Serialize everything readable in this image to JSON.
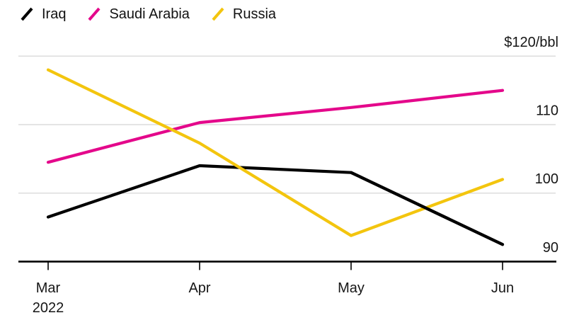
{
  "legend": {
    "items": [
      {
        "label": "Iraq",
        "color": "#000000"
      },
      {
        "label": "Saudi Arabia",
        "color": "#e4088b"
      },
      {
        "label": "Russia",
        "color": "#f3c50e"
      }
    ]
  },
  "chart_data": {
    "type": "line",
    "title": "",
    "unit": "$/bbl",
    "categories": [
      "Mar",
      "Apr",
      "May",
      "Jun"
    ],
    "x_year_label": "2022",
    "series": [
      {
        "name": "Iraq",
        "color": "#000000",
        "values": [
          96.5,
          104,
          103,
          92.5
        ]
      },
      {
        "name": "Saudi Arabia",
        "color": "#e4088b",
        "values": [
          104.5,
          110.3,
          112.5,
          115
        ]
      },
      {
        "name": "Russia",
        "color": "#f3c50e",
        "values": [
          118,
          107.3,
          93.8,
          102
        ]
      }
    ],
    "y_axis": {
      "top_label": "$120/bbl",
      "ticks": [
        {
          "value": 120,
          "label": "$120/bbl",
          "gridline": true
        },
        {
          "value": 110,
          "label": "110",
          "gridline": true
        },
        {
          "value": 100,
          "label": "100",
          "gridline": true
        },
        {
          "value": 90,
          "label": "90",
          "gridline": false
        }
      ],
      "ylim": [
        88,
        120
      ],
      "baseline_value": 90
    },
    "grid": true,
    "legend_position": "top-left",
    "draw_order": [
      "Saudi Arabia",
      "Iraq",
      "Russia"
    ],
    "overlay_segments": [
      {
        "series": "Iraq",
        "from_index": 2,
        "to_index": 3
      }
    ]
  },
  "colors": {
    "background": "#ffffff",
    "gridline": "#dcdcdc",
    "axis": "#000000",
    "text": "#161616"
  }
}
